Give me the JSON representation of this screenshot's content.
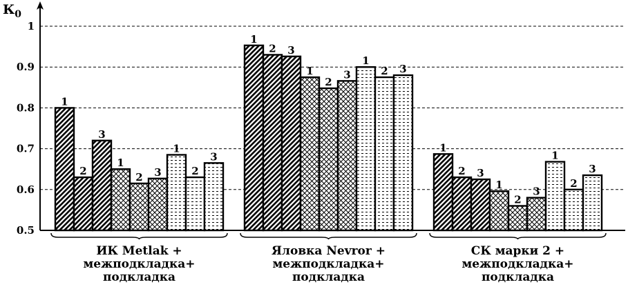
{
  "chart_data": {
    "type": "bar",
    "ylabel": "К",
    "ylabel_sub": "0",
    "ylim": [
      0.5,
      1.0
    ],
    "yticks": [
      "0.5",
      "0.6",
      "0.7",
      "0.8",
      "0.9",
      "1"
    ],
    "grid": "dashed horizontal",
    "bar_labels": [
      "1",
      "2",
      "3",
      "1",
      "2",
      "3",
      "1",
      "2",
      "3"
    ],
    "patterns": [
      "diagonal",
      "diagonal",
      "diagonal",
      "crosshatch",
      "crosshatch",
      "crosshatch",
      "dashes",
      "dashes",
      "dashes"
    ],
    "groups": [
      {
        "label_lines": [
          "ИК Metlak +",
          "межподкладка+",
          "подкладка"
        ],
        "values": [
          0.8,
          0.63,
          0.72,
          0.65,
          0.615,
          0.627,
          0.685,
          0.63,
          0.665
        ]
      },
      {
        "label_lines": [
          "Яловка Nevror +",
          "межподкладка+",
          "подкладка"
        ],
        "values": [
          0.953,
          0.93,
          0.926,
          0.875,
          0.848,
          0.866,
          0.9,
          0.875,
          0.88
        ]
      },
      {
        "label_lines": [
          "СК марки 2 +",
          "межподкладка+",
          "подкладка"
        ],
        "values": [
          0.687,
          0.63,
          0.625,
          0.596,
          0.56,
          0.58,
          0.668,
          0.6,
          0.635
        ]
      }
    ],
    "colors": {
      "ink": "#000000",
      "background": "#ffffff",
      "grid": "#000000"
    }
  }
}
